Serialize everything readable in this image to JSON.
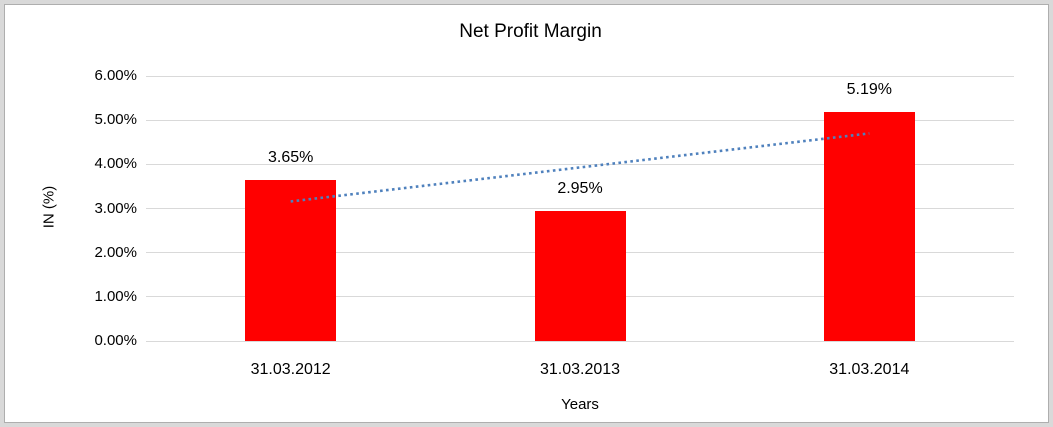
{
  "chart_data": {
    "type": "bar",
    "title": "Net Profit Margin",
    "xlabel": "Years",
    "ylabel": "IN (%)",
    "categories": [
      "31.03.2012",
      "31.03.2013",
      "31.03.2014"
    ],
    "values": [
      3.65,
      2.95,
      5.19
    ],
    "data_labels": [
      "3.65%",
      "2.95%",
      "5.19%"
    ],
    "y_ticks": [
      "0.00%",
      "1.00%",
      "2.00%",
      "3.00%",
      "4.00%",
      "5.00%",
      "6.00%"
    ],
    "ylim": [
      0,
      6
    ],
    "grid": true,
    "legend": "none",
    "bar_color": "#ff0000",
    "gridline_color": "#d9d9d9",
    "text_color": "#000000",
    "trendline": {
      "type": "linear",
      "style": "dotted",
      "color": "#4f81bd",
      "start_value": 3.16,
      "end_value": 4.7
    }
  }
}
